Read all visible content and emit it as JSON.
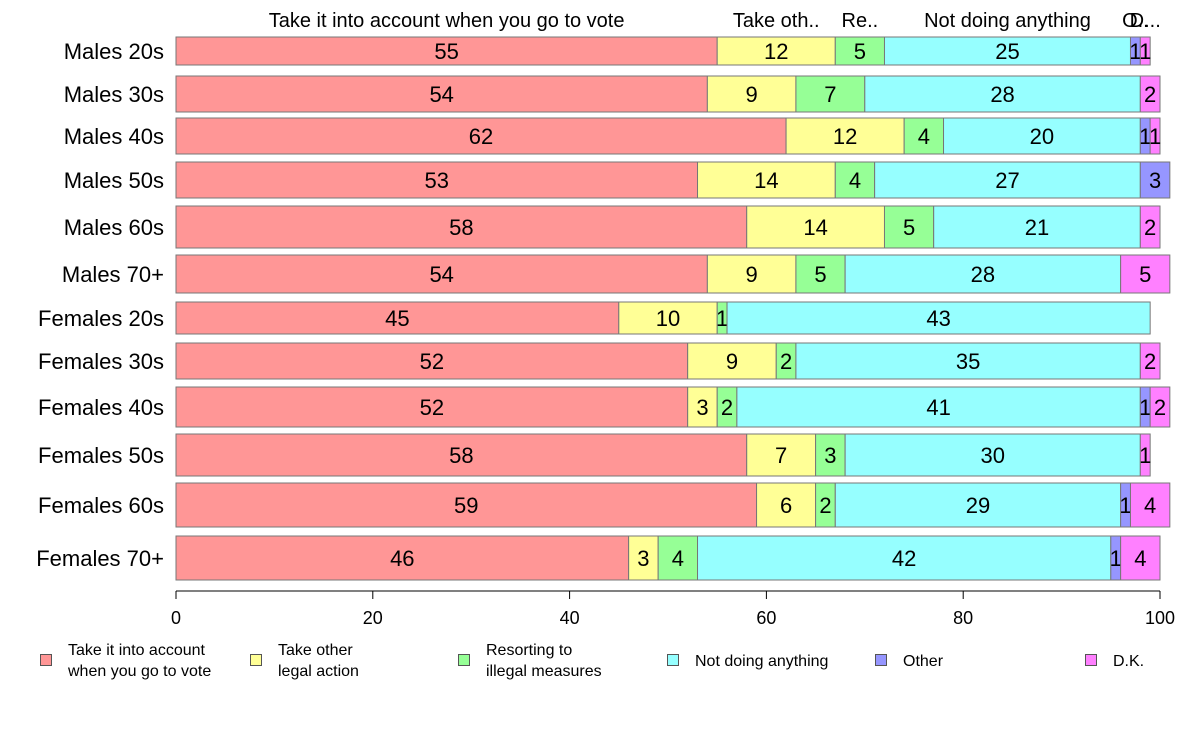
{
  "chart_data": {
    "type": "bar",
    "orientation": "horizontal",
    "stacked": true,
    "categories": [
      "Males 20s",
      "Males 30s",
      "Males 40s",
      "Males 50s",
      "Males 60s",
      "Males 70+",
      "Females 20s",
      "Females 30s",
      "Females 40s",
      "Females 50s",
      "Females 60s",
      "Females 70+"
    ],
    "series": [
      {
        "name": "Take it into account when you go to vote",
        "legend": "Take it into account\nwhen you go to vote",
        "header": "Take it into account when you go to vote",
        "color": "#ff9696",
        "values": [
          55,
          54,
          62,
          53,
          58,
          54,
          45,
          52,
          52,
          58,
          59,
          46
        ]
      },
      {
        "name": "Take other legal action",
        "legend": "Take other\nlegal action",
        "header": "Take oth..",
        "color": "#ffff96",
        "values": [
          12,
          9,
          12,
          14,
          14,
          9,
          10,
          9,
          3,
          7,
          6,
          3
        ]
      },
      {
        "name": "Resorting to illegal measures",
        "legend": "Resorting to\nillegal measures",
        "header": "Re..",
        "color": "#96ff96",
        "values": [
          5,
          7,
          4,
          4,
          5,
          5,
          1,
          2,
          2,
          3,
          2,
          4
        ]
      },
      {
        "name": "Not doing anything",
        "legend": "Not doing anything",
        "header": "Not doing anything",
        "color": "#96ffff",
        "values": [
          25,
          28,
          20,
          27,
          21,
          28,
          43,
          35,
          41,
          30,
          29,
          42
        ]
      },
      {
        "name": "Other",
        "legend": "Other",
        "header": "O..",
        "color": "#9696ff",
        "values": [
          1,
          0,
          1,
          3,
          0,
          0,
          0,
          0,
          1,
          0,
          1,
          1
        ]
      },
      {
        "name": "D.K.",
        "legend": "D.K.",
        "header": "D...",
        "color": "#ff80ff",
        "values": [
          1,
          2,
          1,
          0,
          2,
          5,
          0,
          2,
          2,
          1,
          4,
          4
        ]
      }
    ],
    "xlim": [
      0,
      100
    ],
    "xticks": [
      0,
      20,
      40,
      60,
      80,
      100
    ],
    "title": "",
    "xlabel": "",
    "ylabel": "",
    "legend_position": "bottom",
    "grid": false
  }
}
